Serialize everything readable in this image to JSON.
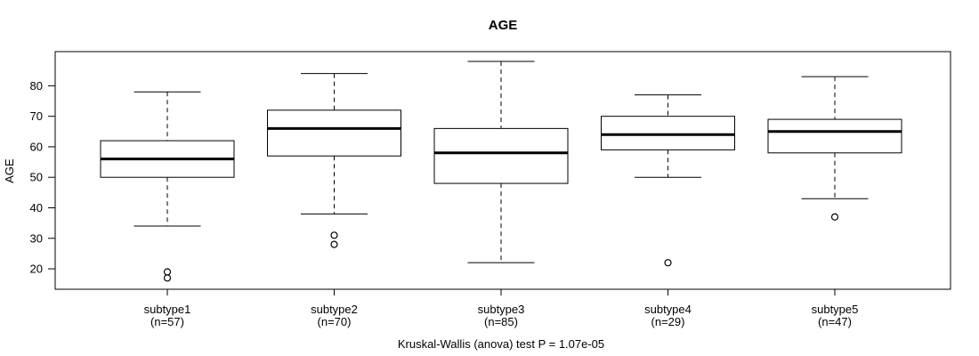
{
  "chart_data": {
    "type": "boxplot",
    "title": "AGE",
    "ylabel": "AGE",
    "xlabel": "",
    "caption": "Kruskal-Wallis (anova) test P = 1.07e-05",
    "ylim": [
      13.3,
      91.2
    ],
    "yticks": [
      20,
      30,
      40,
      50,
      60,
      70,
      80
    ],
    "grid": false,
    "legend": "none",
    "categories": [
      "subtype1",
      "subtype2",
      "subtype3",
      "subtype4",
      "subtype5"
    ],
    "sample_size_labels": [
      "(n=57)",
      "(n=70)",
      "(n=85)",
      "(n=29)",
      "(n=47)"
    ],
    "series": [
      {
        "name": "subtype1",
        "n": 57,
        "whisker_low": 34,
        "q1": 50,
        "median": 56,
        "q3": 62,
        "whisker_high": 78,
        "outliers": [
          19,
          17
        ]
      },
      {
        "name": "subtype2",
        "n": 70,
        "whisker_low": 38,
        "q1": 57,
        "median": 66,
        "q3": 72,
        "whisker_high": 84,
        "outliers": [
          31,
          28
        ]
      },
      {
        "name": "subtype3",
        "n": 85,
        "whisker_low": 22,
        "q1": 48,
        "median": 58,
        "q3": 66,
        "whisker_high": 88,
        "outliers": []
      },
      {
        "name": "subtype4",
        "n": 29,
        "whisker_low": 50,
        "q1": 59,
        "median": 64,
        "q3": 70,
        "whisker_high": 77,
        "outliers": [
          22
        ]
      },
      {
        "name": "subtype5",
        "n": 47,
        "whisker_low": 43,
        "q1": 58,
        "median": 65,
        "q3": 69,
        "whisker_high": 83,
        "outliers": [
          37
        ]
      }
    ],
    "colors": {
      "line": "#000000",
      "box_fill": "#ffffff",
      "background": "#ffffff"
    }
  }
}
